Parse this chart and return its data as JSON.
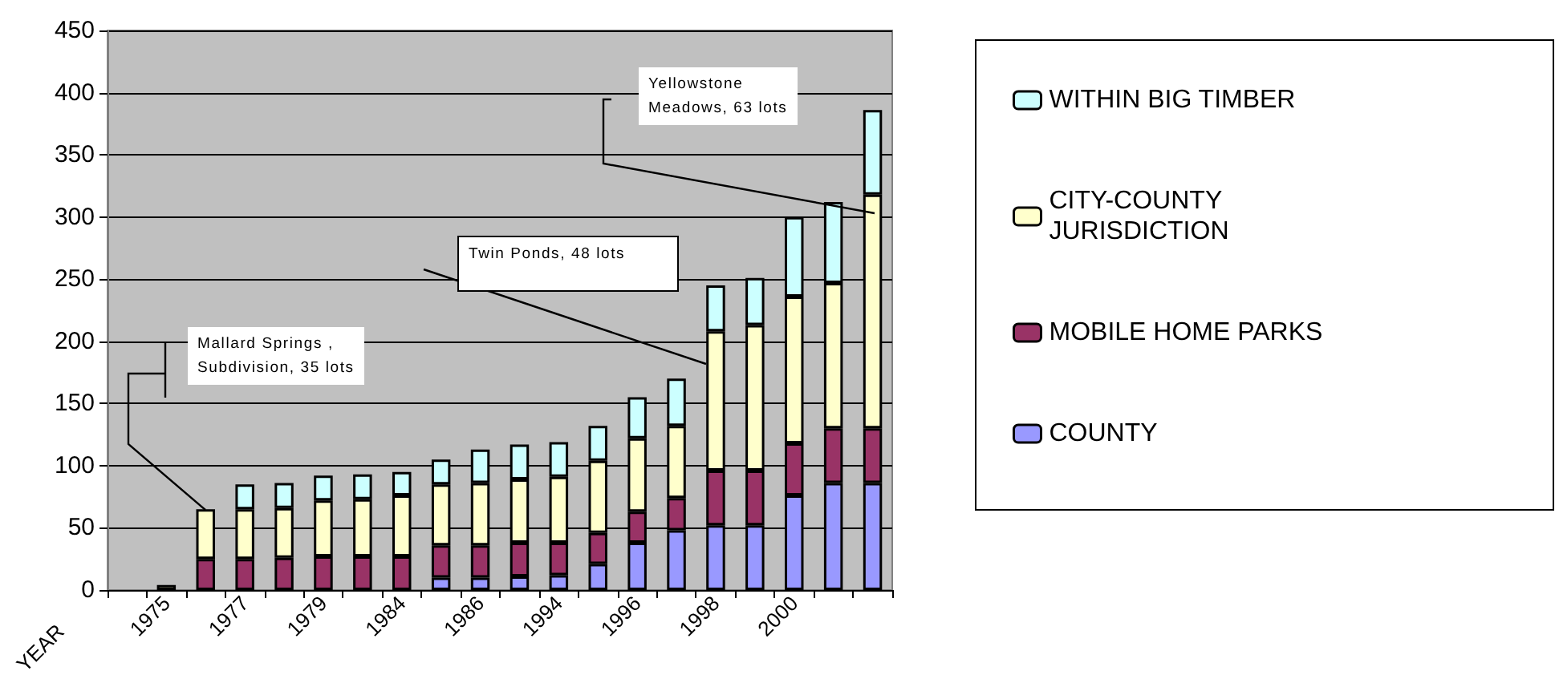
{
  "chart_data": {
    "type": "bar",
    "stacked": true,
    "xlabel": "YEAR",
    "categories": [
      null,
      "1975",
      null,
      "1977",
      null,
      "1979",
      null,
      "1984",
      null,
      "1986",
      null,
      "1994",
      null,
      "1996",
      null,
      "1998",
      null,
      "2000",
      null,
      null
    ],
    "series": [
      {
        "name": "COUNTY",
        "color": "#9999ff",
        "values": [
          null,
          0,
          0,
          0,
          null,
          null,
          null,
          null,
          10,
          10,
          11,
          12,
          21,
          38,
          48,
          52,
          52,
          76,
          86,
          86
        ]
      },
      {
        "name": "MOBILE HOME PARKS",
        "color": "#993366",
        "values": [
          null,
          0,
          25,
          25,
          26,
          27,
          27,
          27,
          26,
          26,
          27,
          26,
          25,
          25,
          26,
          44,
          44,
          42,
          44,
          44
        ]
      },
      {
        "name": "CITY-COUNTY JURISDICTION",
        "color": "#ffffcc",
        "values": [
          null,
          4,
          40,
          40,
          40,
          45,
          46,
          49,
          49,
          50,
          51,
          53,
          58,
          59,
          58,
          112,
          117,
          118,
          117,
          188
        ]
      },
      {
        "name": "WITHIN BIG TIMBER",
        "color": "#ccffff",
        "values": [
          null,
          0,
          0,
          20,
          20,
          20,
          20,
          19,
          20,
          27,
          28,
          28,
          28,
          33,
          38,
          37,
          38,
          64,
          65,
          68
        ]
      }
    ],
    "ylim": [
      0,
      450
    ],
    "yticks": [
      0,
      50,
      100,
      150,
      200,
      250,
      300,
      350,
      400,
      450
    ],
    "grid": "y",
    "legend": "right",
    "annotations": [
      "Mallard Springs ,\nSubdivision, 35 lots",
      "Twin Ponds, 48 lots",
      "Yellowstone\nMeadows, 63 lots"
    ]
  }
}
